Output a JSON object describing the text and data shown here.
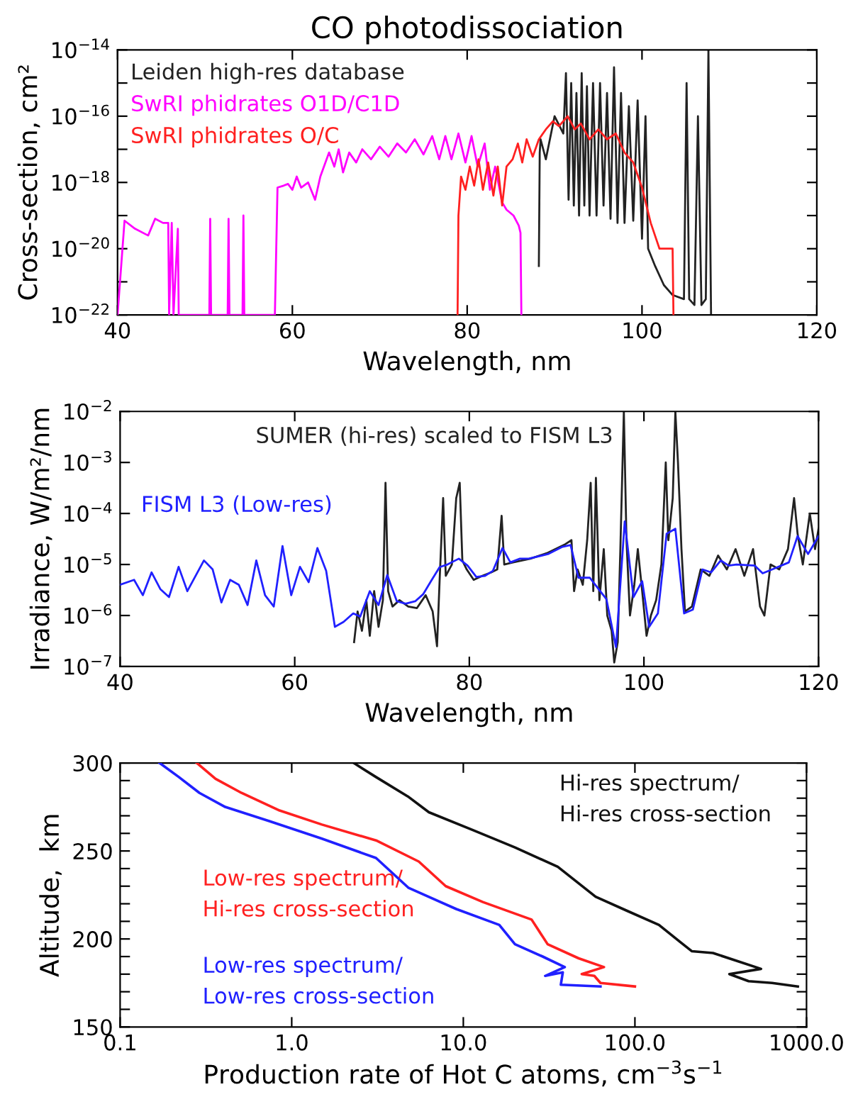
{
  "chart_data": [
    {
      "type": "line",
      "title": "CO photodissociation",
      "xlabel": "Wavelength, nm",
      "ylabel": "Cross-section, cm²",
      "log": "y",
      "grid": false,
      "legend": "top left",
      "marker": "none",
      "line_style": "solid",
      "xlim": [
        40,
        120
      ],
      "xticks": [
        40,
        60,
        80,
        100,
        120
      ],
      "ylim": [
        1e-22,
        1e-14
      ],
      "yticks": [
        {
          "value": 1e-22,
          "label": "10$^{−22}$"
        },
        {
          "value": 1e-21,
          "label": null
        },
        {
          "value": 1e-20,
          "label": "10$^{−20}$"
        },
        {
          "value": 1e-19,
          "label": null
        },
        {
          "value": 1e-18,
          "label": "10$^{−18}$"
        },
        {
          "value": 1e-17,
          "label": null
        },
        {
          "value": 1e-16,
          "label": "10$^{−16}$"
        },
        {
          "value": 1e-15,
          "label": null
        },
        {
          "value": 1e-14,
          "label": "10$^{−14}$"
        }
      ],
      "series": [
        {
          "name": "Leiden high-res database",
          "color": "#222222",
          "x": [
            88.2,
            88.3,
            88.4,
            89.0,
            90.0,
            91.0,
            91.3,
            91.6,
            91.9,
            92.2,
            92.5,
            92.8,
            93.1,
            93.4,
            93.7,
            94.0,
            94.4,
            94.8,
            95.2,
            95.6,
            96.0,
            96.4,
            96.8,
            97.2,
            97.6,
            98.0,
            98.5,
            99.0,
            99.5,
            100.0,
            100.4,
            100.7,
            101.5,
            102.5,
            103.5,
            104.8,
            105.1,
            105.4,
            106.0,
            106.4,
            106.8,
            107.3,
            107.6,
            107.9
          ],
          "values": [
            3e-21,
            8e-18,
            2e-17,
            5e-18,
            1e-16,
            3e-17,
            2e-15,
            3e-19,
            1e-15,
            2e-19,
            5e-16,
            1e-19,
            2e-15,
            2e-19,
            8e-16,
            1e-19,
            1e-15,
            1e-19,
            1e-15,
            2e-19,
            5e-16,
            8e-20,
            3e-15,
            6e-20,
            5e-16,
            6e-20,
            2e-16,
            7e-20,
            3e-16,
            2e-20,
            1e-16,
            1e-20,
            3e-21,
            8e-22,
            4e-22,
            3e-22,
            1e-15,
            3e-22,
            2e-22,
            1e-16,
            2e-22,
            3e-22,
            1e-14,
            1e-22
          ]
        },
        {
          "name": "SwRI phidrates O1D/C1D",
          "color": "#ff00ff",
          "x": [
            40.0,
            40.8,
            42.0,
            43.5,
            44.3,
            45.2,
            45.8,
            45.9,
            46.2,
            46.4,
            46.9,
            47.0,
            50.5,
            50.6,
            50.7,
            52.6,
            52.7,
            52.8,
            54.3,
            54.4,
            54.5,
            58.0,
            58.3,
            59.0,
            59.5,
            60.0,
            60.5,
            61.0,
            61.8,
            62.6,
            63.2,
            64.2,
            64.8,
            65.3,
            65.8,
            66.5,
            67.3,
            68.0,
            69.0,
            70.0,
            71.0,
            72.0,
            73.0,
            74.0,
            75.0,
            76.0,
            76.8,
            77.5,
            78.2,
            79.0,
            79.8,
            80.5,
            81.2,
            82.0,
            82.6,
            83.2,
            84.0,
            84.5,
            85.3,
            85.9,
            86.1,
            86.2
          ],
          "values": [
            1e-22,
            7e-20,
            4e-20,
            2.5e-20,
            8e-20,
            6e-20,
            6e-20,
            1e-22,
            6e-20,
            1e-22,
            4e-20,
            1e-22,
            1e-22,
            8e-20,
            1e-22,
            1e-22,
            8e-20,
            1e-22,
            1e-22,
            1e-19,
            1e-22,
            1e-22,
            7e-19,
            8e-19,
            9e-19,
            6e-19,
            1.5e-18,
            7e-19,
            1e-18,
            3e-19,
            1.5e-18,
            8e-18,
            3e-18,
            1e-17,
            2e-18,
            8e-18,
            4e-18,
            1e-17,
            5e-18,
            1.2e-17,
            6e-18,
            1.5e-17,
            8e-18,
            2e-17,
            7e-18,
            2.5e-17,
            5e-18,
            2.5e-17,
            5e-18,
            3e-17,
            4e-18,
            2.5e-17,
            3e-18,
            1.5e-17,
            6e-19,
            3e-18,
            2.5e-19,
            1.5e-19,
            1e-19,
            5e-20,
            3e-20,
            1e-22
          ]
        },
        {
          "name": "SwRI phidrates O/C",
          "color": "#ff2020",
          "x": [
            78.9,
            79.0,
            79.3,
            79.8,
            80.3,
            80.8,
            81.3,
            81.8,
            82.4,
            83.0,
            83.5,
            84.0,
            84.5,
            85.2,
            85.8,
            86.3,
            86.8,
            87.5,
            88.2,
            89.0,
            89.8,
            90.5,
            91.5,
            92.3,
            93.0,
            94.0,
            95.0,
            96.0,
            97.0,
            98.0,
            99.0,
            100.0,
            101.0,
            102.0,
            103.5,
            103.6
          ],
          "values": [
            1e-22,
            1e-19,
            1.5e-18,
            6e-19,
            3e-18,
            8e-19,
            5e-18,
            6e-19,
            4e-18,
            4e-19,
            3e-18,
            2e-19,
            3e-18,
            5e-18,
            1.5e-17,
            4e-18,
            2e-17,
            6e-18,
            2e-17,
            4e-17,
            7e-17,
            5e-17,
            1e-16,
            4e-17,
            6e-17,
            2e-17,
            4e-17,
            2e-17,
            3e-17,
            8e-18,
            4e-18,
            7e-19,
            6e-20,
            1e-20,
            1e-20,
            1e-22
          ]
        }
      ]
    },
    {
      "type": "line",
      "xlabel": "Wavelength, nm",
      "ylabel": "Irradiance, W/m²/nm",
      "log": "y",
      "grid": false,
      "marker": "none",
      "line_style": "solid",
      "xlim": [
        40,
        120
      ],
      "xticks": [
        40,
        60,
        80,
        100,
        120
      ],
      "ylim": [
        1e-07,
        0.01
      ],
      "yticks": [
        {
          "value": 1e-07,
          "label": "10$^{−7}$"
        },
        {
          "value": 1e-06,
          "label": "10$^{−6}$"
        },
        {
          "value": 1e-05,
          "label": "10$^{−5}$"
        },
        {
          "value": 0.0001,
          "label": "10$^{−4}$"
        },
        {
          "value": 0.001,
          "label": "10$^{−3}$"
        },
        {
          "value": 0.01,
          "label": "10$^{−2}$"
        }
      ],
      "series": [
        {
          "name": "SUMER (hi-res) scaled to FISM L3",
          "color": "#222222",
          "x": [
            66.8,
            67.2,
            67.7,
            68.2,
            68.6,
            69.1,
            69.6,
            70.1,
            70.4,
            70.7,
            71.2,
            72.0,
            73.0,
            74.0,
            75.0,
            75.8,
            76.3,
            76.6,
            77.0,
            77.3,
            78.0,
            78.5,
            78.9,
            79.2,
            79.7,
            80.5,
            81.5,
            82.5,
            83.2,
            83.7,
            84.0,
            85.0,
            87.0,
            89.0,
            91.0,
            91.7,
            92.0,
            92.4,
            93.0,
            93.5,
            93.9,
            94.2,
            94.5,
            94.9,
            95.4,
            95.8,
            96.3,
            96.6,
            97.0,
            97.3,
            97.7,
            98.0,
            98.4,
            98.9,
            99.3,
            99.8,
            100.3,
            100.8,
            101.4,
            102.0,
            102.5,
            102.8,
            103.3,
            103.6,
            103.9,
            104.3,
            104.7,
            105.5,
            106.5,
            107.5,
            108.5,
            109.5,
            110.5,
            111.5,
            112.5,
            113.3,
            113.8,
            114.5,
            115.5,
            116.5,
            117.2,
            117.6,
            118.2,
            119.0,
            119.6,
            120.0
          ],
          "values": [
            3e-07,
            1.2e-06,
            5e-07,
            2e-06,
            4e-07,
            3e-06,
            6e-07,
            2e-06,
            0.0004,
            3e-06,
            1.5e-06,
            2e-06,
            1.5e-06,
            1.4e-06,
            2.5e-06,
            1.2e-06,
            2.5e-07,
            5e-06,
            0.0002,
            6e-06,
            1e-05,
            0.0002,
            0.0004,
            1.2e-05,
            8e-06,
            5e-06,
            6e-06,
            7e-06,
            8e-06,
            9e-05,
            1e-05,
            1.1e-05,
            1.3e-05,
            1.7e-05,
            2.5e-05,
            3e-05,
            3e-06,
            8e-06,
            4e-06,
            3e-05,
            0.0004,
            3e-06,
            0.0005,
            2e-06,
            2e-05,
            1e-06,
            5e-07,
            1.2e-07,
            3e-07,
            2e-05,
            0.01,
            3e-05,
            1e-06,
            4e-06,
            2e-05,
            3e-06,
            4e-07,
            1e-06,
            2e-06,
            1e-05,
            0.001,
            3e-05,
            0.0002,
            0.01,
            0.001,
            2e-05,
            1.2e-06,
            1.5e-06,
            8e-06,
            6e-06,
            1.5e-05,
            8e-06,
            2e-05,
            6e-06,
            2e-05,
            1.5e-06,
            1e-06,
            1e-05,
            8e-06,
            2e-05,
            0.0002,
            4e-05,
            1e-05,
            0.0001,
            2e-05,
            5e-05
          ]
        },
        {
          "name": "FISM L3 (Low-res)",
          "color": "#2020ff",
          "x": [
            40.0,
            41.6,
            42.6,
            43.6,
            44.6,
            45.6,
            46.7,
            47.7,
            49.6,
            50.6,
            51.6,
            52.6,
            53.6,
            54.6,
            55.6,
            56.6,
            57.6,
            58.6,
            59.6,
            60.6,
            61.6,
            62.6,
            63.6,
            64.6,
            65.6,
            66.7,
            67.5,
            68.6,
            69.6,
            70.6,
            71.7,
            72.7,
            73.8,
            74.7,
            75.6,
            76.6,
            77.5,
            78.8,
            79.8,
            80.8,
            81.8,
            82.7,
            83.8,
            84.7,
            85.8,
            86.8,
            89.0,
            90.6,
            91.6,
            92.5,
            93.8,
            94.8,
            95.7,
            96.8,
            97.8,
            98.8,
            99.8,
            100.6,
            101.6,
            102.6,
            103.6,
            104.6,
            105.6,
            106.7,
            107.7,
            108.8,
            109.7,
            110.6,
            112.7,
            113.6,
            114.7,
            116.6,
            117.6,
            118.8,
            120.0
          ],
          "values": [
            4e-06,
            5e-06,
            2.5e-06,
            7e-06,
            3.3e-06,
            2.3e-06,
            9e-06,
            3e-06,
            1.2e-05,
            8e-06,
            1.8e-06,
            5e-06,
            4e-06,
            1.6e-06,
            1.2e-05,
            2.5e-06,
            1.5e-06,
            2.3e-05,
            2.5e-06,
            9e-06,
            4.5e-06,
            2.1e-05,
            7.5e-06,
            6e-07,
            7.5e-07,
            1.1e-06,
            9.5e-07,
            3e-06,
            1.6e-06,
            6.2e-06,
            1.9e-06,
            1.7e-06,
            1.9e-06,
            2.6e-06,
            4.7e-06,
            8.9e-06,
            1e-05,
            1.3e-05,
            9.5e-06,
            5.7e-06,
            6e-06,
            7.5e-06,
            2.1e-05,
            1.1e-05,
            1.3e-05,
            1.3e-05,
            1.6e-05,
            2.2e-05,
            2.4e-05,
            5.5e-06,
            5.5e-06,
            3.3e-06,
            2.1e-06,
            2.4e-07,
            7e-05,
            2.3e-06,
            4.7e-06,
            6e-07,
            1.1e-06,
            4e-05,
            5e-05,
            1.1e-06,
            1.3e-06,
            8e-06,
            7e-06,
            1.2e-05,
            9.5e-06,
            1e-05,
            9.5e-06,
            6.7e-06,
            8e-06,
            1.1e-05,
            3.6e-05,
            1.6e-05,
            3.6e-05
          ]
        }
      ]
    },
    {
      "type": "line",
      "xlabel": "Production rate of Hot C atoms, cm$^{−3}$s$^{−1}$",
      "ylabel": "Altitude,  km",
      "log": "x",
      "grid": false,
      "marker": "none",
      "line_style": "solid",
      "xlim": [
        0.1,
        1000
      ],
      "xticks": [
        0.1,
        {
          "value": 1,
          "label": "1.0"
        },
        {
          "value": 10,
          "label": "10.0"
        },
        {
          "value": 100,
          "label": "100.0"
        },
        {
          "value": 1000,
          "label": "1000.0"
        }
      ],
      "ylim": [
        150,
        300
      ],
      "yticks": [
        150,
        {
          "value": 160,
          "label": null
        },
        {
          "value": 170,
          "label": null
        },
        {
          "value": 180,
          "label": null
        },
        {
          "value": 190,
          "label": null
        },
        200,
        {
          "value": 210,
          "label": null
        },
        {
          "value": 220,
          "label": null
        },
        {
          "value": 230,
          "label": null
        },
        {
          "value": 240,
          "label": null
        },
        250,
        {
          "value": 260,
          "label": null
        },
        {
          "value": 270,
          "label": null
        },
        {
          "value": 280,
          "label": null
        },
        {
          "value": 290,
          "label": null
        },
        300
      ],
      "series": [
        {
          "name": "Hi-res spectrum/\nHi-res cross-section",
          "color": "#111111",
          "x": [
            2.3,
            3.1,
            4.75,
            6.3,
            11.3,
            20,
            35.5,
            59,
            90,
            138,
            185,
            215,
            285,
            543,
            355,
            460,
            630,
            890
          ],
          "values": [
            300,
            292,
            281,
            272,
            262,
            252,
            241,
            224,
            216,
            208,
            198,
            193,
            192,
            183,
            180,
            176,
            175,
            173
          ]
        },
        {
          "name": "Low-res spectrum/\nHi-res cross-section",
          "color": "#ff2020",
          "x": [
            0.28,
            0.36,
            0.51,
            0.85,
            1.5,
            3.1,
            5.5,
            7.9,
            13,
            25,
            31,
            47,
            66,
            49,
            58,
            63,
            100
          ],
          "values": [
            300,
            291,
            283,
            273,
            265,
            256,
            244,
            230,
            221,
            211,
            197,
            189,
            184,
            180,
            179,
            175,
            173
          ]
        },
        {
          "name": "Low-res spectrum/\nLow-res cross-section",
          "color": "#2020ff",
          "x": [
            0.17,
            0.22,
            0.29,
            0.41,
            0.74,
            1.5,
            3.1,
            4.8,
            9.1,
            16.2,
            20,
            29,
            39,
            30,
            38,
            37,
            63
          ],
          "values": [
            300,
            292,
            283,
            275,
            267,
            257,
            246,
            229,
            217,
            208,
            197,
            190,
            184,
            179,
            181,
            174,
            173
          ]
        }
      ]
    }
  ]
}
